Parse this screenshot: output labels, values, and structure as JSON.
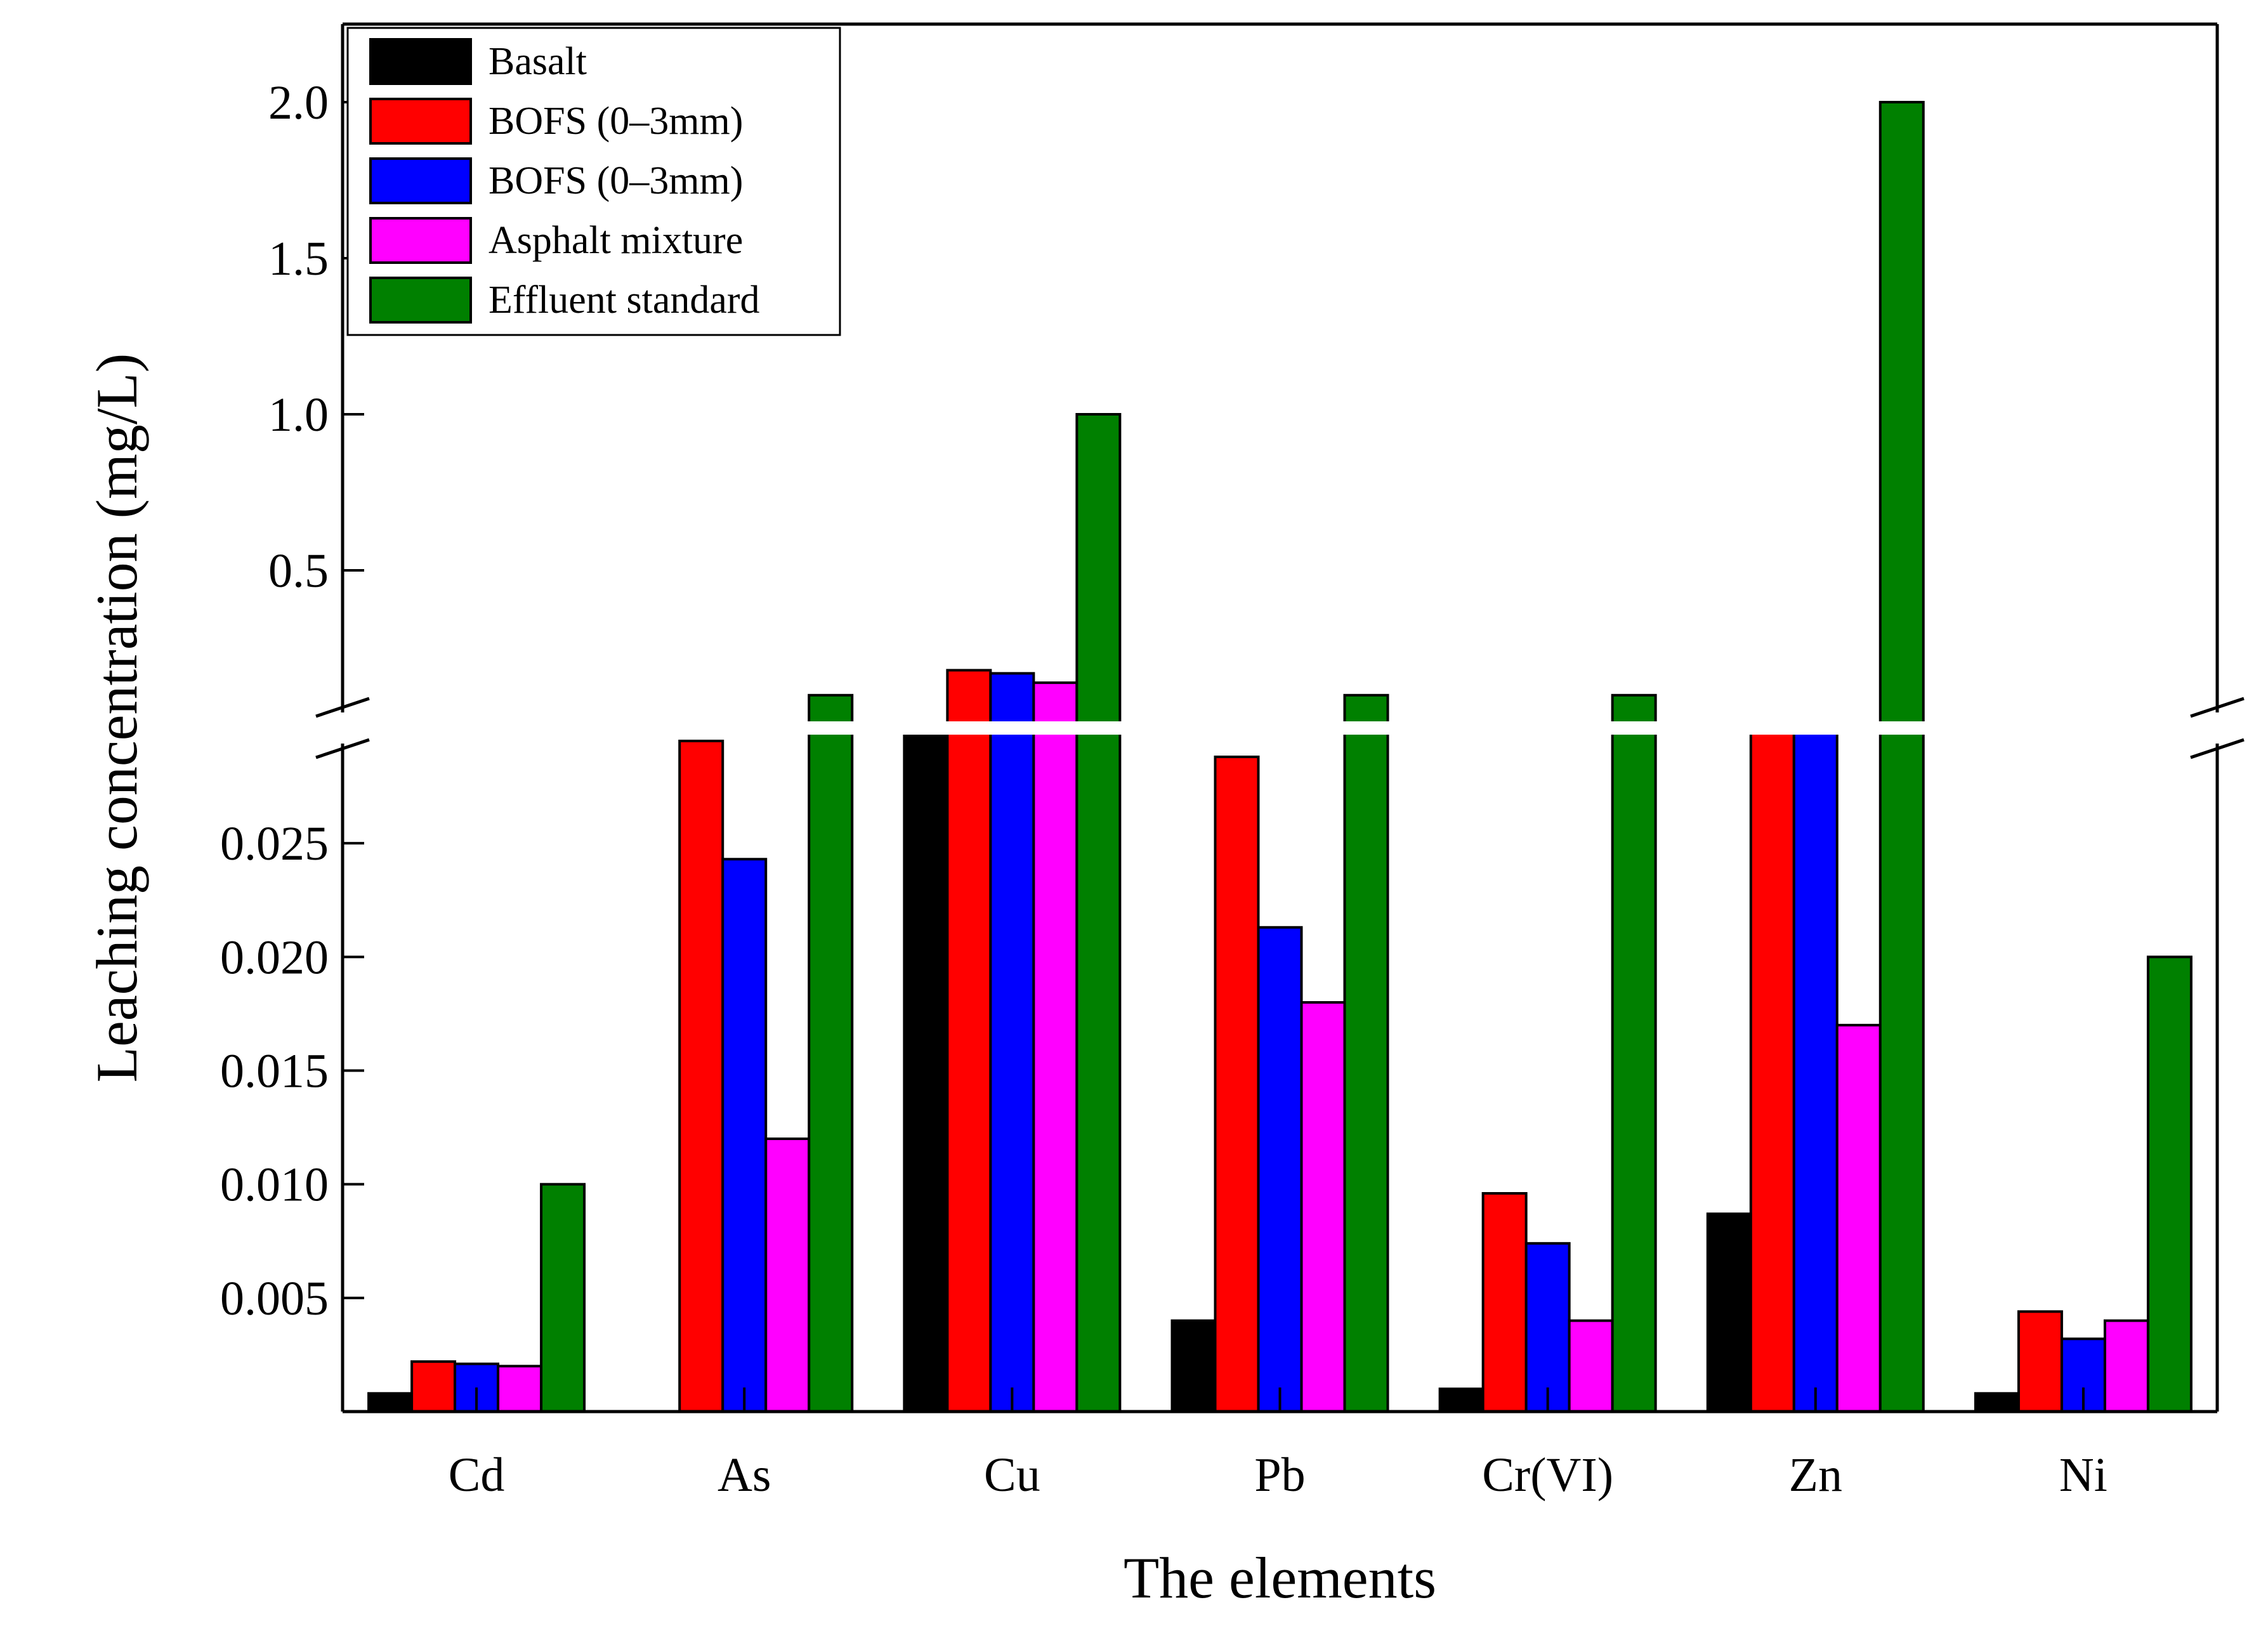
{
  "chart_data": {
    "type": "bar",
    "title": "",
    "xlabel": "The elements",
    "ylabel": "Leaching concentration (mg/L)",
    "categories": [
      "Cd",
      "As",
      "Cu",
      "Pb",
      "Cr(VI)",
      "Zn",
      "Ni"
    ],
    "axis_break": {
      "lower_range": [
        0,
        0.03
      ],
      "upper_range": [
        0.0,
        2.25
      ],
      "lower_ticks": [
        "0.005",
        "0.010",
        "0.015",
        "0.020",
        "0.025"
      ],
      "upper_ticks": [
        "0.5",
        "1.0",
        "1.5",
        "2.0"
      ]
    },
    "series": [
      {
        "name": "Basalt",
        "color": "#000000",
        "values": [
          0.0008,
          0.0,
          0.03,
          0.004,
          0.001,
          0.0087,
          0.0008
        ]
      },
      {
        "name": "BOFS (0–3mm)",
        "color": "#ff0000",
        "values": [
          0.0022,
          0.0295,
          0.18,
          0.0288,
          0.0096,
          0.03,
          0.0044
        ]
      },
      {
        "name": "BOFS (0–3mm)",
        "color": "#0000ff",
        "values": [
          0.0021,
          0.0243,
          0.17,
          0.0213,
          0.0074,
          0.03,
          0.0032
        ]
      },
      {
        "name": "Asphalt mixture",
        "color": "#ff00ff",
        "values": [
          0.002,
          0.012,
          0.14,
          0.018,
          0.004,
          0.017,
          0.004
        ]
      },
      {
        "name": "Effluent standard",
        "color": "#008000",
        "values": [
          0.01,
          0.1,
          1.0,
          0.1,
          0.1,
          2.0,
          0.02
        ]
      }
    ],
    "legend_position": "top-left",
    "grid": false
  }
}
